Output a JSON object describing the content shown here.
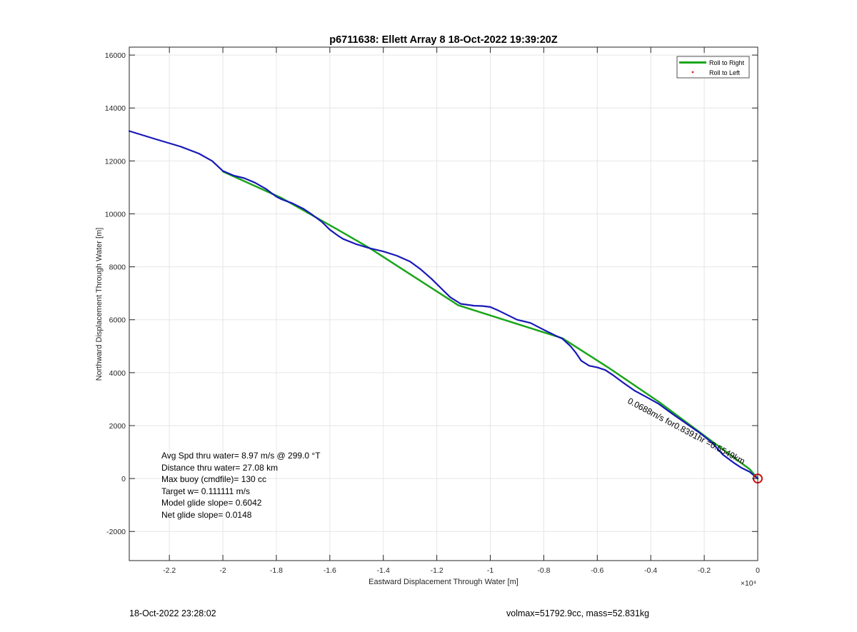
{
  "chart_data": {
    "type": "line",
    "title": "p6711638: Ellett Array 8 18-Oct-2022 19:39:20Z",
    "xlabel": "Eastward Displacement Through Water [m]",
    "ylabel": "Northward Displacement Through Water [m]",
    "x_exponent_label": "×10⁴",
    "xlim": [
      -23500,
      0
    ],
    "ylim": [
      -3100,
      16300
    ],
    "x_ticks": [
      -22000,
      -20000,
      -18000,
      -16000,
      -14000,
      -12000,
      -10000,
      -8000,
      -6000,
      -4000,
      -2000,
      0
    ],
    "x_tick_labels": [
      "-2.2",
      "-2",
      "-1.8",
      "-1.6",
      "-1.4",
      "-1.2",
      "-1",
      "-0.8",
      "-0.6",
      "-0.4",
      "-0.2",
      "0"
    ],
    "y_ticks": [
      -2000,
      0,
      2000,
      4000,
      6000,
      8000,
      10000,
      12000,
      14000,
      16000
    ],
    "y_tick_labels": [
      "-2000",
      "0",
      "2000",
      "4000",
      "6000",
      "8000",
      "10000",
      "12000",
      "14000",
      "16000"
    ],
    "grid": true,
    "legend_position": "top-right",
    "legend": [
      {
        "label": "Roll to Right",
        "color": "#1aa51a",
        "style": "line"
      },
      {
        "label": "Roll to Left",
        "color": "#e02020",
        "style": "point"
      }
    ],
    "series": [
      {
        "name": "Roll to Right",
        "color": "#1aa51a",
        "x": [
          -20000,
          -17800,
          -15700,
          -14500,
          -11200,
          -7300,
          -5600,
          -3700,
          -1700,
          -300,
          0
        ],
        "y": [
          11600,
          10600,
          9400,
          8700,
          6550,
          5300,
          4200,
          2900,
          1400,
          350,
          0
        ]
      },
      {
        "color": "#1818b8",
        "x": [
          -23500,
          -22500,
          -21600,
          -20900,
          -20400,
          -20000,
          -19600,
          -19200,
          -18800,
          -18400,
          -18000,
          -17800,
          -17400,
          -17000,
          -16700,
          -16300,
          -16000,
          -15700,
          -15500,
          -15000,
          -14500,
          -14000,
          -13500,
          -13000,
          -12600,
          -12200,
          -11800,
          -11500,
          -11100,
          -10600,
          -10300,
          -10000,
          -9700,
          -9400,
          -9000,
          -8500,
          -8000,
          -7600,
          -7300,
          -7000,
          -6800,
          -6600,
          -6300,
          -6000,
          -5700,
          -5400,
          -5000,
          -4600,
          -4200,
          -3700,
          -3200,
          -2700,
          -2200,
          -1700,
          -1300,
          -900,
          -600,
          -300,
          -100,
          0
        ],
        "y": [
          13130,
          12820,
          12550,
          12280,
          12000,
          11620,
          11450,
          11350,
          11180,
          10950,
          10650,
          10550,
          10400,
          10200,
          10000,
          9700,
          9400,
          9180,
          9050,
          8850,
          8700,
          8580,
          8420,
          8200,
          7900,
          7550,
          7150,
          6850,
          6600,
          6530,
          6520,
          6480,
          6350,
          6200,
          6000,
          5880,
          5620,
          5420,
          5280,
          5000,
          4750,
          4450,
          4260,
          4200,
          4100,
          3900,
          3600,
          3320,
          3100,
          2820,
          2450,
          2100,
          1750,
          1350,
          900,
          600,
          400,
          250,
          80,
          0
        ]
      }
    ],
    "annotations": {
      "rotated_label": "0.0688m/s for0.8391hr =0.5549km",
      "stats": [
        "Avg Spd thru water=  8.97 m/s @ 299.0 °T",
        "Distance thru water= 27.08 km",
        "Max buoy (cmdfile)= 130 cc",
        "Target w= 0.111111 m/s",
        "Model glide slope= 0.6042",
        "Net glide slope= 0.0148"
      ]
    }
  },
  "footer": {
    "left": "18-Oct-2022 23:28:02",
    "right": "volmax=51792.9cc, mass=52.831kg"
  }
}
